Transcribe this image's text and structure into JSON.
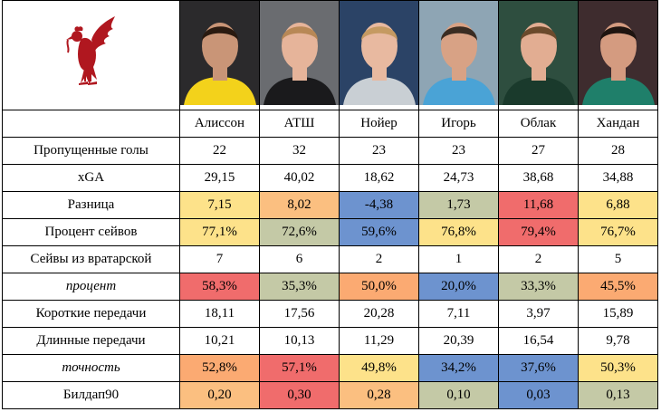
{
  "players": [
    {
      "name": "Алиссон",
      "bg": "#2b2a2c",
      "jersey": "#f3d21b",
      "skin": "#c99577",
      "hair": "#2a1a10"
    },
    {
      "name": "АТШ",
      "bg": "#6a6c70",
      "jersey": "#1a1a1c",
      "skin": "#e6b49a",
      "hair": "#b88856"
    },
    {
      "name": "Нойер",
      "bg": "#2b4366",
      "jersey": "#c9cfd4",
      "skin": "#e8b9a0",
      "hair": "#c59a62"
    },
    {
      "name": "Игорь",
      "bg": "#8ea5b4",
      "jersey": "#4aa3d6",
      "skin": "#d8a285",
      "hair": "#3a2c22"
    },
    {
      "name": "Облак",
      "bg": "#2e4e3f",
      "jersey": "#1a3a2c",
      "skin": "#e2ad92",
      "hair": "#6b4a2c"
    },
    {
      "name": "Хандан",
      "bg": "#3e2c2e",
      "jersey": "#1f7f6a",
      "skin": "#d49b80",
      "hair": "#1e1410"
    }
  ],
  "logo": {
    "icon": "liverbird-icon",
    "color": "#b0171f"
  },
  "rows": [
    {
      "label": "Пропущенные голы",
      "italic": false,
      "cells": [
        {
          "v": "22",
          "c": "#ffffff"
        },
        {
          "v": "32",
          "c": "#ffffff"
        },
        {
          "v": "23",
          "c": "#ffffff"
        },
        {
          "v": "23",
          "c": "#ffffff"
        },
        {
          "v": "27",
          "c": "#ffffff"
        },
        {
          "v": "28",
          "c": "#ffffff"
        }
      ]
    },
    {
      "label": "xGA",
      "italic": false,
      "cells": [
        {
          "v": "29,15",
          "c": "#ffffff"
        },
        {
          "v": "40,02",
          "c": "#ffffff"
        },
        {
          "v": "18,62",
          "c": "#ffffff"
        },
        {
          "v": "24,73",
          "c": "#ffffff"
        },
        {
          "v": "38,68",
          "c": "#ffffff"
        },
        {
          "v": "34,88",
          "c": "#ffffff"
        }
      ]
    },
    {
      "label": "Разница",
      "italic": false,
      "cells": [
        {
          "v": "7,15",
          "c": "#fde28a"
        },
        {
          "v": "8,02",
          "c": "#fbbf80"
        },
        {
          "v": "-4,38",
          "c": "#6d93cf"
        },
        {
          "v": "1,73",
          "c": "#c4c9a6"
        },
        {
          "v": "11,68",
          "c": "#f06c6c"
        },
        {
          "v": "6,88",
          "c": "#fde28a"
        }
      ]
    },
    {
      "label": "Процент сейвов",
      "italic": false,
      "cells": [
        {
          "v": "77,1%",
          "c": "#fde28a"
        },
        {
          "v": "72,6%",
          "c": "#c4c9a6"
        },
        {
          "v": "59,6%",
          "c": "#6d93cf"
        },
        {
          "v": "76,8%",
          "c": "#fde28a"
        },
        {
          "v": "79,4%",
          "c": "#f06c6c"
        },
        {
          "v": "76,7%",
          "c": "#fde28a"
        }
      ]
    },
    {
      "label": "Сейвы из вратарской",
      "italic": false,
      "cells": [
        {
          "v": "7",
          "c": "#ffffff"
        },
        {
          "v": "6",
          "c": "#ffffff"
        },
        {
          "v": "2",
          "c": "#ffffff"
        },
        {
          "v": "1",
          "c": "#ffffff"
        },
        {
          "v": "2",
          "c": "#ffffff"
        },
        {
          "v": "5",
          "c": "#ffffff"
        }
      ]
    },
    {
      "label": "процент",
      "italic": true,
      "cells": [
        {
          "v": "58,3%",
          "c": "#f06c6c"
        },
        {
          "v": "35,3%",
          "c": "#c4c9a6"
        },
        {
          "v": "50,0%",
          "c": "#fbaa72"
        },
        {
          "v": "20,0%",
          "c": "#6d93cf"
        },
        {
          "v": "33,3%",
          "c": "#c4c9a6"
        },
        {
          "v": "45,5%",
          "c": "#fbaa72"
        }
      ]
    },
    {
      "label": "Короткие передачи",
      "italic": false,
      "cells": [
        {
          "v": "18,11",
          "c": "#ffffff"
        },
        {
          "v": "17,56",
          "c": "#ffffff"
        },
        {
          "v": "20,28",
          "c": "#ffffff"
        },
        {
          "v": "7,11",
          "c": "#ffffff"
        },
        {
          "v": "3,97",
          "c": "#ffffff"
        },
        {
          "v": "15,89",
          "c": "#ffffff"
        }
      ]
    },
    {
      "label": "Длинные передачи",
      "italic": false,
      "cells": [
        {
          "v": "10,21",
          "c": "#ffffff"
        },
        {
          "v": "10,13",
          "c": "#ffffff"
        },
        {
          "v": "11,29",
          "c": "#ffffff"
        },
        {
          "v": "20,39",
          "c": "#ffffff"
        },
        {
          "v": "16,54",
          "c": "#ffffff"
        },
        {
          "v": "9,78",
          "c": "#ffffff"
        }
      ]
    },
    {
      "label": "точность",
      "italic": true,
      "cells": [
        {
          "v": "52,8%",
          "c": "#fbaa72"
        },
        {
          "v": "57,1%",
          "c": "#f06c6c"
        },
        {
          "v": "49,8%",
          "c": "#fde28a"
        },
        {
          "v": "34,2%",
          "c": "#6d93cf"
        },
        {
          "v": "37,6%",
          "c": "#6d93cf"
        },
        {
          "v": "50,3%",
          "c": "#fde28a"
        }
      ]
    },
    {
      "label": "Билдап90",
      "italic": false,
      "cells": [
        {
          "v": "0,20",
          "c": "#fbbf80"
        },
        {
          "v": "0,30",
          "c": "#f06c6c"
        },
        {
          "v": "0,28",
          "c": "#fbbf80"
        },
        {
          "v": "0,10",
          "c": "#c4c9a6"
        },
        {
          "v": "0,03",
          "c": "#6d93cf"
        },
        {
          "v": "0,13",
          "c": "#c4c9a6"
        }
      ]
    }
  ]
}
